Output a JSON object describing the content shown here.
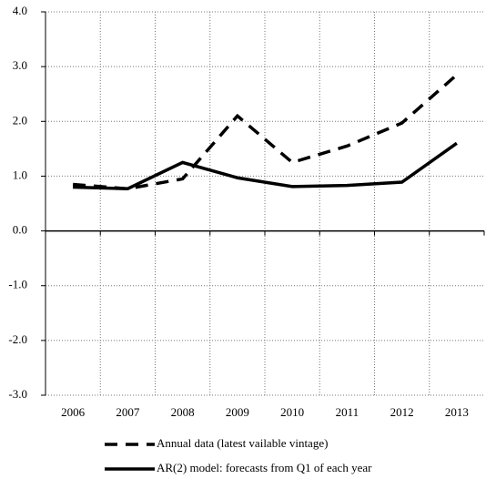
{
  "chart_data": {
    "type": "line",
    "categories": [
      "2006",
      "2007",
      "2008",
      "2009",
      "2010",
      "2011",
      "2012",
      "2013"
    ],
    "series": [
      {
        "name": "Annual data (latest vailable vintage)",
        "color": "#000000",
        "dash": true,
        "values": [
          0.85,
          0.77,
          0.95,
          2.1,
          1.25,
          1.55,
          1.97,
          2.85
        ]
      },
      {
        "name": "AR(2) model: forecasts from Q1 of each year",
        "color": "#000000",
        "dash": false,
        "values": [
          0.8,
          0.77,
          1.25,
          0.97,
          0.81,
          0.83,
          0.89,
          1.6
        ]
      }
    ],
    "ylim": [
      -3,
      4
    ],
    "yticks": [
      {
        "value": -3,
        "label": "-3.0"
      },
      {
        "value": -2,
        "label": "-2.0"
      },
      {
        "value": -1,
        "label": "-1.0"
      },
      {
        "value": 0,
        "label": "0.0"
      },
      {
        "value": 1,
        "label": "1.0"
      },
      {
        "value": 2,
        "label": "2.0"
      },
      {
        "value": 3,
        "label": "3.0"
      },
      {
        "value": 4,
        "label": "4.0"
      }
    ],
    "grid": true
  }
}
